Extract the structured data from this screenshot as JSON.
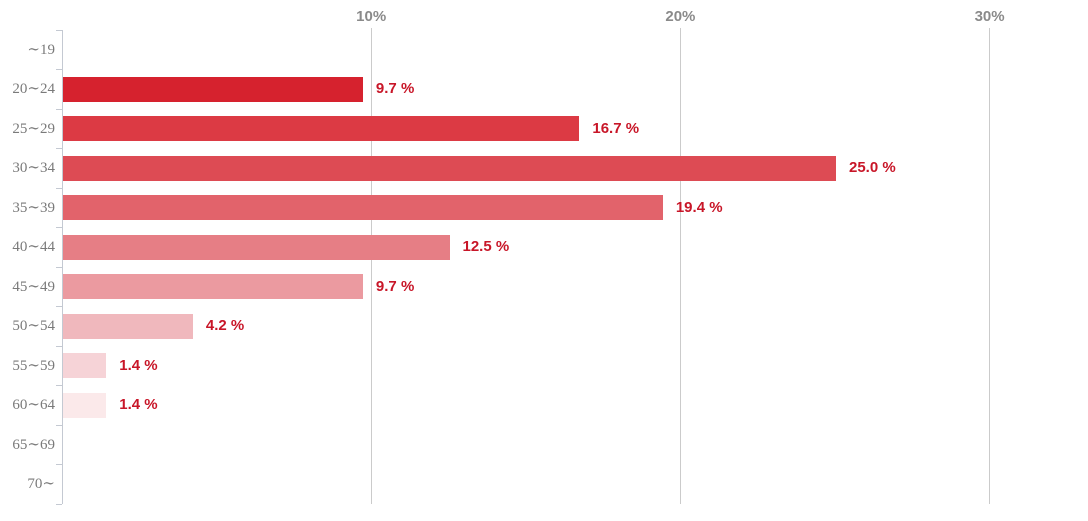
{
  "chart_data": {
    "type": "bar",
    "orientation": "horizontal",
    "title": "",
    "xlabel": "",
    "ylabel": "",
    "categories": [
      "～19",
      "20～24",
      "25～29",
      "30～34",
      "35～39",
      "40～44",
      "45～49",
      "50～54",
      "55～59",
      "60～64",
      "65～69",
      "70～"
    ],
    "values": [
      0,
      9.7,
      16.7,
      25.0,
      19.4,
      12.5,
      9.7,
      4.2,
      1.4,
      1.4,
      0,
      0
    ],
    "value_labels": [
      "",
      "9.7 %",
      "16.7 %",
      "25.0 %",
      "19.4 %",
      "12.5 %",
      "9.7 %",
      "4.2 %",
      "1.4 %",
      "1.4 %",
      "",
      ""
    ],
    "bar_colors": [
      "",
      "#d6222e",
      "#dc3a44",
      "#dd4b54",
      "#e2636b",
      "#e67e85",
      "#eb9aa0",
      "#f0b8bd",
      "#f6d3d7",
      "#fbe9ea",
      "",
      ""
    ],
    "x_ticks": [
      {
        "label": "10%",
        "value": 10
      },
      {
        "label": "20%",
        "value": 20
      },
      {
        "label": "30%",
        "value": 30
      }
    ],
    "xlim": [
      0,
      33.2
    ],
    "grid": true,
    "legend": false,
    "colors": {
      "value_label": "#c81628",
      "gridline": "#cbcbcb",
      "axis_line": "#c4c9d2",
      "x_tick_label": "#8a8a8a",
      "category_label": "#7a7a7a"
    }
  }
}
